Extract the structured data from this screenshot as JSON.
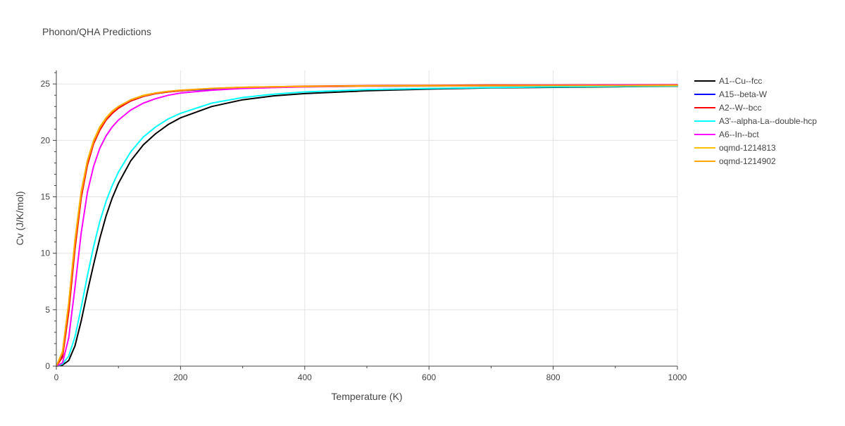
{
  "chart_data": {
    "type": "line",
    "title": "Phonon/QHA Predictions",
    "xlabel": "Temperature (K)",
    "ylabel": "Cv (J/K/mol)",
    "xlim": [
      0,
      1000
    ],
    "ylim": [
      0,
      26.2
    ],
    "xticks": [
      0,
      200,
      400,
      600,
      800,
      1000
    ],
    "yticks": [
      0,
      5,
      10,
      15,
      20,
      25
    ],
    "grid": true,
    "legend_position": "top-right",
    "series": [
      {
        "name": "A1--Cu--fcc",
        "color": "#000000",
        "x": [
          0,
          10,
          20,
          30,
          40,
          50,
          60,
          70,
          80,
          90,
          100,
          120,
          140,
          160,
          180,
          200,
          250,
          300,
          350,
          400,
          500,
          600,
          700,
          800,
          900,
          1000
        ],
        "y": [
          0,
          0.1,
          0.5,
          1.8,
          4.0,
          6.6,
          9.0,
          11.3,
          13.3,
          14.9,
          16.2,
          18.2,
          19.6,
          20.6,
          21.4,
          22.0,
          23.0,
          23.6,
          23.95,
          24.15,
          24.4,
          24.55,
          24.65,
          24.7,
          24.75,
          24.8
        ]
      },
      {
        "name": "A15--beta-W",
        "color": "#0000ff",
        "x": [
          0,
          10,
          20,
          30,
          40,
          50,
          60,
          70,
          80,
          90,
          100,
          120,
          140,
          160,
          180,
          200,
          250,
          300,
          350,
          400,
          500,
          600,
          700,
          800,
          900,
          1000
        ],
        "y": [
          0,
          1.0,
          5.2,
          10.8,
          15.2,
          18.0,
          19.8,
          21.0,
          21.8,
          22.4,
          22.9,
          23.5,
          23.9,
          24.15,
          24.3,
          24.4,
          24.55,
          24.65,
          24.7,
          24.75,
          24.8,
          24.82,
          24.84,
          24.85,
          24.86,
          24.87
        ]
      },
      {
        "name": "A2--W--bcc",
        "color": "#ff0000",
        "x": [
          0,
          10,
          20,
          30,
          40,
          50,
          60,
          70,
          80,
          90,
          100,
          120,
          140,
          160,
          180,
          200,
          250,
          300,
          350,
          400,
          500,
          600,
          700,
          800,
          900,
          1000
        ],
        "y": [
          0,
          0.8,
          4.8,
          10.4,
          14.9,
          17.8,
          19.7,
          20.9,
          21.8,
          22.4,
          22.85,
          23.5,
          23.9,
          24.15,
          24.3,
          24.4,
          24.6,
          24.7,
          24.75,
          24.8,
          24.85,
          24.88,
          24.9,
          24.91,
          24.92,
          24.93
        ]
      },
      {
        "name": "A3'--alpha-La--double-hcp",
        "color": "#00ffff",
        "x": [
          0,
          10,
          20,
          30,
          40,
          50,
          60,
          70,
          80,
          90,
          100,
          120,
          140,
          160,
          180,
          200,
          250,
          300,
          350,
          400,
          500,
          600,
          700,
          800,
          900,
          1000
        ],
        "y": [
          0,
          0.2,
          0.9,
          2.6,
          5.2,
          8.0,
          10.6,
          12.8,
          14.6,
          16.0,
          17.2,
          19.0,
          20.3,
          21.2,
          21.9,
          22.4,
          23.3,
          23.8,
          24.1,
          24.3,
          24.5,
          24.6,
          24.68,
          24.74,
          24.78,
          24.82
        ]
      },
      {
        "name": "A6--In--bct",
        "color": "#ff00ff",
        "x": [
          0,
          10,
          20,
          30,
          40,
          50,
          60,
          70,
          80,
          90,
          100,
          120,
          140,
          160,
          180,
          200,
          250,
          300,
          350,
          400,
          500,
          600,
          700,
          800,
          900,
          1000
        ],
        "y": [
          0,
          0.3,
          2.5,
          7.0,
          11.8,
          15.4,
          17.7,
          19.3,
          20.4,
          21.2,
          21.8,
          22.7,
          23.3,
          23.7,
          24.0,
          24.2,
          24.45,
          24.6,
          24.68,
          24.74,
          24.8,
          24.84,
          24.86,
          24.88,
          24.9,
          24.91
        ]
      },
      {
        "name": "oqmd-1214813",
        "color": "#ffc000",
        "x": [
          0,
          10,
          20,
          30,
          40,
          50,
          60,
          70,
          80,
          90,
          100,
          120,
          140,
          160,
          180,
          200,
          250,
          300,
          350,
          400,
          500,
          600,
          700,
          800,
          900,
          1000
        ],
        "y": [
          0,
          1.3,
          5.6,
          11.2,
          15.5,
          18.2,
          20.0,
          21.2,
          22.0,
          22.6,
          23.0,
          23.6,
          24.0,
          24.2,
          24.35,
          24.45,
          24.6,
          24.7,
          24.75,
          24.78,
          24.82,
          24.84,
          24.85,
          24.86,
          24.86,
          24.87
        ]
      },
      {
        "name": "oqmd-1214902",
        "color": "#ffa500",
        "x": [
          0,
          10,
          20,
          30,
          40,
          50,
          60,
          70,
          80,
          90,
          100,
          120,
          140,
          160,
          180,
          200,
          250,
          300,
          350,
          400,
          500,
          600,
          700,
          800,
          900,
          1000
        ],
        "y": [
          0,
          1.2,
          5.5,
          11.0,
          15.3,
          18.1,
          19.9,
          21.1,
          21.95,
          22.55,
          23.0,
          23.6,
          23.95,
          24.2,
          24.35,
          24.45,
          24.6,
          24.7,
          24.75,
          24.78,
          24.82,
          24.84,
          24.85,
          24.86,
          24.86,
          24.87
        ]
      }
    ]
  }
}
